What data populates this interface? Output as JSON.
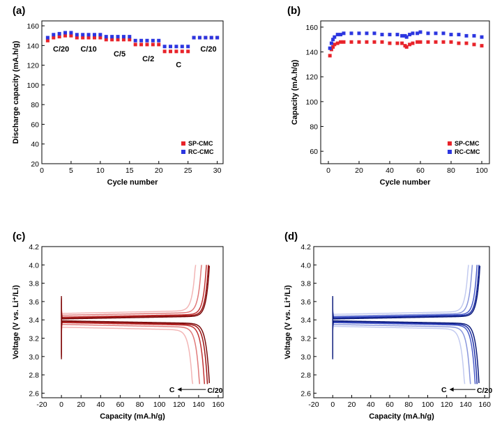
{
  "chart_data": [
    {
      "panel": "(a)",
      "type": "scatter",
      "xlabel": "Cycle number",
      "ylabel": "Discharge capacity (mA.h/g)",
      "xlim": [
        0,
        31
      ],
      "ylim": [
        20,
        165
      ],
      "xticks": [
        0,
        5,
        10,
        15,
        20,
        25,
        30
      ],
      "yticks": [
        20,
        40,
        60,
        80,
        100,
        120,
        140,
        160
      ],
      "legend": "bottom-right",
      "series": [
        {
          "name": "SP-CMC",
          "color": "#e8232a",
          "x": [
            1,
            2,
            3,
            4,
            5,
            6,
            7,
            8,
            9,
            10,
            11,
            12,
            13,
            14,
            15,
            16,
            17,
            18,
            19,
            20,
            21,
            22,
            23,
            24,
            25,
            26,
            27,
            28,
            29,
            30
          ],
          "y": [
            145,
            148,
            149,
            150,
            150,
            148,
            148,
            148,
            148,
            148,
            146,
            146,
            146,
            146,
            146,
            141,
            141,
            141,
            141,
            141,
            134,
            134,
            134,
            134,
            134,
            148,
            148,
            148,
            148,
            148
          ]
        },
        {
          "name": "RC-CMC",
          "color": "#2c36e0",
          "x": [
            1,
            2,
            3,
            4,
            5,
            6,
            7,
            8,
            9,
            10,
            11,
            12,
            13,
            14,
            15,
            16,
            17,
            18,
            19,
            20,
            21,
            22,
            23,
            24,
            25,
            26,
            27,
            28,
            29,
            30
          ],
          "y": [
            148,
            151,
            152,
            153,
            153,
            151,
            151,
            151,
            151,
            151,
            149,
            149,
            149,
            149,
            149,
            145,
            145,
            145,
            145,
            145,
            139,
            139,
            139,
            139,
            139,
            148,
            148,
            148,
            148,
            148
          ]
        }
      ],
      "annotations": [
        {
          "text": "C/20",
          "x": 3.3,
          "y": 134
        },
        {
          "text": "C/10",
          "x": 8.0,
          "y": 134
        },
        {
          "text": "C/5",
          "x": 13.3,
          "y": 129
        },
        {
          "text": "C/2",
          "x": 18.2,
          "y": 124
        },
        {
          "text": "C",
          "x": 23.4,
          "y": 118
        },
        {
          "text": "C/20",
          "x": 28.5,
          "y": 134
        }
      ]
    },
    {
      "panel": "(b)",
      "type": "scatter",
      "xlabel": "Cycle number",
      "ylabel": "Capacity (mA.h/g)",
      "xlim": [
        -5,
        105
      ],
      "ylim": [
        50,
        165
      ],
      "xticks": [
        0,
        20,
        40,
        60,
        80,
        100
      ],
      "yticks": [
        60,
        80,
        100,
        120,
        140,
        160
      ],
      "legend": "bottom-right",
      "series": [
        {
          "name": "SP-CMC",
          "color": "#e8232a",
          "x": [
            1,
            2,
            3,
            4,
            6,
            8,
            10,
            15,
            20,
            25,
            30,
            35,
            40,
            45,
            48,
            50,
            51,
            53,
            55,
            58,
            60,
            65,
            70,
            75,
            80,
            85,
            90,
            95,
            100
          ],
          "y": [
            137,
            142,
            144,
            146,
            147,
            148,
            148,
            148,
            148,
            148,
            148,
            148,
            147,
            147,
            147,
            145,
            144,
            146,
            147,
            148,
            148,
            148,
            148,
            148,
            148,
            147,
            147,
            146,
            145
          ]
        },
        {
          "name": "RC-CMC",
          "color": "#2c36e0",
          "x": [
            1,
            2,
            3,
            4,
            6,
            8,
            10,
            15,
            20,
            25,
            30,
            35,
            40,
            45,
            48,
            50,
            51,
            53,
            55,
            58,
            60,
            65,
            70,
            75,
            80,
            85,
            90,
            95,
            100
          ],
          "y": [
            143,
            147,
            150,
            152,
            154,
            154,
            155,
            155,
            155,
            155,
            155,
            154,
            154,
            154,
            153,
            153,
            152,
            154,
            155,
            155,
            156,
            155,
            155,
            155,
            154,
            154,
            153,
            153,
            152
          ]
        }
      ]
    },
    {
      "panel": "(c)",
      "type": "line",
      "xlabel": "Capacity (mA.h/g)",
      "ylabel": "Voltage (V vs. Li⁺/Li)",
      "xlim": [
        -20,
        165
      ],
      "ylim": [
        2.55,
        4.2
      ],
      "xticks": [
        -20,
        0,
        20,
        40,
        60,
        80,
        100,
        120,
        140,
        160
      ],
      "yticks": [
        2.6,
        2.8,
        3.0,
        3.2,
        3.4,
        3.6,
        3.8,
        4.0,
        4.2
      ],
      "series": [
        {
          "name": "C/20",
          "color": "#7a0b0b",
          "charge_end": 151,
          "discharge_end": 151,
          "charge_plateau": 3.41,
          "discharge_plateau": 3.39
        },
        {
          "name": "C/10",
          "color": "#9c1515",
          "charge_end": 150,
          "discharge_end": 149,
          "charge_plateau": 3.42,
          "discharge_plateau": 3.38
        },
        {
          "name": "C/5",
          "color": "#c23333",
          "charge_end": 148,
          "discharge_end": 146,
          "charge_plateau": 3.43,
          "discharge_plateau": 3.37
        },
        {
          "name": "C/2",
          "color": "#e07a7a",
          "charge_end": 143,
          "discharge_end": 141,
          "charge_plateau": 3.45,
          "discharge_plateau": 3.35
        },
        {
          "name": "C",
          "color": "#f3b6b6",
          "charge_end": 137,
          "discharge_end": 134,
          "charge_plateau": 3.47,
          "discharge_plateau": 3.32
        }
      ],
      "arrow_from": "C/20",
      "arrow_to": "C"
    },
    {
      "panel": "(d)",
      "type": "line",
      "xlabel": "Capacity (mA.h/g)",
      "ylabel": "Voltage (V vs. Li⁺/Li)",
      "xlim": [
        -20,
        165
      ],
      "ylim": [
        2.55,
        4.2
      ],
      "xticks": [
        -20,
        0,
        20,
        40,
        60,
        80,
        100,
        120,
        140,
        160
      ],
      "yticks": [
        2.6,
        2.8,
        3.0,
        3.2,
        3.4,
        3.6,
        3.8,
        4.0,
        4.2
      ],
      "series": [
        {
          "name": "C/20",
          "color": "#0b1a7a",
          "charge_end": 155,
          "discharge_end": 154,
          "charge_plateau": 3.41,
          "discharge_plateau": 3.39
        },
        {
          "name": "C/10",
          "color": "#1c2ea6",
          "charge_end": 154,
          "discharge_end": 152,
          "charge_plateau": 3.42,
          "discharge_plateau": 3.38
        },
        {
          "name": "C/5",
          "color": "#4a5cc8",
          "charge_end": 152,
          "discharge_end": 150,
          "charge_plateau": 3.43,
          "discharge_plateau": 3.37
        },
        {
          "name": "C/2",
          "color": "#8a97dc",
          "charge_end": 147,
          "discharge_end": 145,
          "charge_plateau": 3.44,
          "discharge_plateau": 3.35
        },
        {
          "name": "C",
          "color": "#c3cbf0",
          "charge_end": 143,
          "discharge_end": 139,
          "charge_plateau": 3.46,
          "discharge_plateau": 3.33
        }
      ],
      "arrow_from": "C/20",
      "arrow_to": "C"
    }
  ]
}
